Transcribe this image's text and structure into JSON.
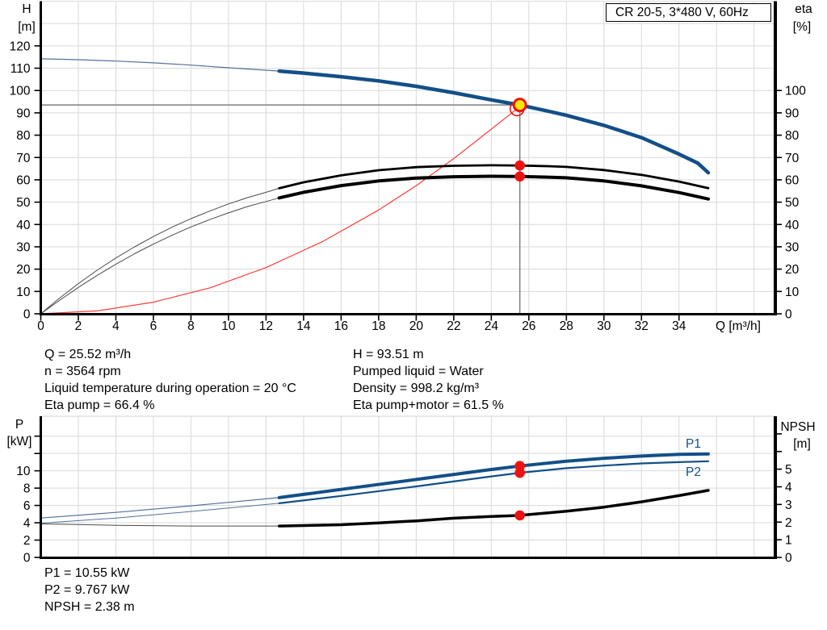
{
  "title_box": "CR 20-5, 3*480 V, 60Hz",
  "series_labels": {
    "p1": "P1",
    "p2": "P2"
  },
  "info_top_left": [
    "Q = 25.52 m³/h",
    "n = 3564 rpm",
    "Liquid temperature during operation = 20 °C",
    "Eta pump = 66.4 %"
  ],
  "info_top_right": [
    "H = 93.51 m",
    "Pumped liquid = Water",
    "Density = 998.2 kg/m³",
    "Eta pump+motor = 61.5 %"
  ],
  "info_bottom": [
    "P1 = 10.55 kW",
    "P2 = 9.767 kW",
    "NPSH = 2.38 m"
  ],
  "colors": {
    "curve_blue": "#134f87",
    "curve_blue_thin": "#53719a",
    "curve_black": "#000000",
    "curve_black_thin": "#4a4a4a",
    "system_red": "#ff3b3b",
    "marker_red": "#ee1111",
    "marker_yellow": "#ffe800",
    "grid": "#d9d9d9",
    "axis": "#000000",
    "crosshair": "#7f7f7f",
    "text": "#000000"
  },
  "chart_data": [
    {
      "type": "line",
      "name": "qh-efficiency-chart",
      "title": "CR 20-5, 3*480 V, 60Hz",
      "x_axis": {
        "label": "Q [m³/h]",
        "min": 0,
        "max": 39.13,
        "tick_step": 2,
        "ticks": [
          0,
          2,
          4,
          6,
          8,
          10,
          12,
          14,
          16,
          18,
          20,
          22,
          24,
          26,
          28,
          30,
          32,
          34
        ],
        "gridlines": [
          2,
          4,
          6,
          8,
          10,
          12,
          14,
          16,
          18,
          20,
          22,
          24,
          26,
          28,
          30,
          32,
          34,
          36,
          38
        ],
        "grid": true
      },
      "y_left": {
        "label_lines": [
          "H",
          "[m]"
        ],
        "min": 0,
        "max": 140,
        "ticks": [
          0,
          10,
          20,
          30,
          40,
          50,
          60,
          70,
          80,
          90,
          100,
          110,
          120
        ],
        "gridlines": [
          10,
          20,
          30,
          40,
          50,
          60,
          70,
          80,
          90,
          100,
          110,
          120,
          130,
          140
        ]
      },
      "y_right": {
        "label_lines": [
          "eta",
          "[%]"
        ],
        "min": 0,
        "max": 140,
        "ticks": [
          0,
          10,
          20,
          30,
          40,
          50,
          60,
          70,
          80,
          90,
          100
        ]
      },
      "series": [
        {
          "name": "system-curve",
          "axis": "left",
          "color": "system_red",
          "width": 1.2,
          "points": [
            [
              0,
              0
            ],
            [
              3,
              1.3
            ],
            [
              6,
              5.2
            ],
            [
              9,
              11.6
            ],
            [
              12,
              20.7
            ],
            [
              15,
              32.3
            ],
            [
              18,
              46.5
            ],
            [
              20,
              57.4
            ],
            [
              22,
              69.5
            ],
            [
              24,
              82.7
            ],
            [
              25.37,
              91.8
            ]
          ]
        },
        {
          "name": "eta-pump-curve-extension",
          "axis": "right",
          "color": "curve_black_thin",
          "width": 1,
          "points": [
            [
              0,
              0
            ],
            [
              1,
              7
            ],
            [
              2,
              13.5
            ],
            [
              3,
              19.5
            ],
            [
              4,
              25
            ],
            [
              5,
              30
            ],
            [
              6,
              34.6
            ],
            [
              7,
              38.8
            ],
            [
              8,
              42.6
            ],
            [
              9,
              46
            ],
            [
              10,
              49.2
            ],
            [
              11,
              52
            ],
            [
              12,
              54.4
            ],
            [
              12.7,
              56.2
            ]
          ]
        },
        {
          "name": "eta-pump-motor-curve-extension",
          "axis": "right",
          "color": "curve_black_thin",
          "width": 1,
          "points": [
            [
              0,
              0
            ],
            [
              1,
              6
            ],
            [
              2,
              11.8
            ],
            [
              3,
              17.2
            ],
            [
              4,
              22.2
            ],
            [
              5,
              26.9
            ],
            [
              6,
              31.2
            ],
            [
              7,
              35.2
            ],
            [
              8,
              38.9
            ],
            [
              9,
              42.2
            ],
            [
              10,
              45.2
            ],
            [
              11,
              48
            ],
            [
              12,
              50.3
            ],
            [
              12.7,
              51.9
            ]
          ]
        },
        {
          "name": "eta-pump-curve",
          "axis": "right",
          "color": "curve_black",
          "width": 2.8,
          "points": [
            [
              12.7,
              56.2
            ],
            [
              14,
              58.9
            ],
            [
              16,
              62
            ],
            [
              18,
              64.3
            ],
            [
              20,
              65.7
            ],
            [
              22,
              66.3
            ],
            [
              24,
              66.5
            ],
            [
              25.52,
              66.4
            ],
            [
              27,
              66.1
            ],
            [
              28,
              65.8
            ],
            [
              30,
              64.4
            ],
            [
              32,
              62.2
            ],
            [
              34,
              59.2
            ],
            [
              35.56,
              56.3
            ]
          ]
        },
        {
          "name": "eta-pump-motor-curve",
          "axis": "right",
          "color": "curve_black",
          "width": 4,
          "points": [
            [
              12.7,
              51.9
            ],
            [
              14,
              54.4
            ],
            [
              16,
              57.4
            ],
            [
              18,
              59.5
            ],
            [
              20,
              60.8
            ],
            [
              22,
              61.4
            ],
            [
              24,
              61.6
            ],
            [
              25.52,
              61.5
            ],
            [
              27,
              61.2
            ],
            [
              28,
              60.9
            ],
            [
              30,
              59.5
            ],
            [
              32,
              57.3
            ],
            [
              34,
              54.3
            ],
            [
              35.56,
              51.4
            ]
          ]
        },
        {
          "name": "qh-curve-extension",
          "axis": "left",
          "color": "curve_blue_thin",
          "width": 1.2,
          "points": [
            [
              0,
              114.2
            ],
            [
              2,
              113.8
            ],
            [
              4,
              113.2
            ],
            [
              6,
              112.4
            ],
            [
              8,
              111.4
            ],
            [
              10,
              110.2
            ],
            [
              12.7,
              108.7
            ]
          ]
        },
        {
          "name": "qh-curve",
          "axis": "left",
          "color": "curve_blue",
          "width": 4.5,
          "points": [
            [
              12.7,
              108.7
            ],
            [
              14,
              107.8
            ],
            [
              16,
              106.2
            ],
            [
              18,
              104.3
            ],
            [
              20,
              101.9
            ],
            [
              22,
              99.0
            ],
            [
              24,
              95.8
            ],
            [
              25.52,
              93.51
            ],
            [
              27,
              90.8
            ],
            [
              28,
              88.9
            ],
            [
              30,
              84.4
            ],
            [
              32,
              78.9
            ],
            [
              34,
              71.5
            ],
            [
              35,
              67.5
            ],
            [
              35.56,
              63.2
            ]
          ]
        }
      ],
      "duty_point": {
        "q": 25.52,
        "h": 93.51,
        "crosshair": true
      },
      "open_marker": {
        "q": 25.37,
        "h": 91.8
      },
      "dot_markers": [
        {
          "q": 25.52,
          "value": 66.4,
          "axis": "right"
        },
        {
          "q": 25.52,
          "value": 61.5,
          "axis": "right"
        }
      ]
    },
    {
      "type": "line",
      "name": "power-npsh-chart",
      "x_axis": {
        "label": "",
        "min": 0,
        "max": 39.13,
        "ticks": [],
        "gridlines": [
          2,
          4,
          6,
          8,
          10,
          12,
          14,
          16,
          18,
          20,
          22,
          24,
          26,
          28,
          30,
          32,
          34,
          36,
          38
        ],
        "grid": true
      },
      "y_left": {
        "label_lines": [
          "P",
          "[kW]"
        ],
        "min": 0,
        "max": 16.3,
        "ticks": [
          0,
          2,
          4,
          6,
          8,
          10
        ],
        "ticks_unlabeled": [
          12,
          14
        ],
        "gridlines": [
          2,
          4,
          6,
          8,
          10,
          12,
          14
        ]
      },
      "y_right": {
        "label_lines": [
          "NPSH",
          "[m]"
        ],
        "min": 0,
        "max": 8,
        "ticks": [
          0,
          1,
          2,
          3,
          4,
          5
        ],
        "ticks_unlabeled": [
          6,
          7
        ]
      },
      "series": [
        {
          "name": "npsh-curve-extension",
          "axis": "right",
          "color": "curve_black_thin",
          "width": 1,
          "points": [
            [
              0,
              1.9
            ],
            [
              4,
              1.82
            ],
            [
              8,
              1.78
            ],
            [
              12.7,
              1.78
            ]
          ]
        },
        {
          "name": "npsh-curve",
          "axis": "right",
          "color": "curve_black",
          "width": 3.5,
          "points": [
            [
              12.7,
              1.78
            ],
            [
              16,
              1.85
            ],
            [
              18,
              1.95
            ],
            [
              20,
              2.07
            ],
            [
              22,
              2.22
            ],
            [
              24,
              2.32
            ],
            [
              25.52,
              2.38
            ],
            [
              28,
              2.62
            ],
            [
              30,
              2.85
            ],
            [
              32,
              3.15
            ],
            [
              34,
              3.5
            ],
            [
              35.56,
              3.8
            ]
          ]
        },
        {
          "name": "p2-curve-extension",
          "axis": "left",
          "color": "curve_blue_thin",
          "width": 1,
          "points": [
            [
              0,
              3.95
            ],
            [
              4,
              4.55
            ],
            [
              8,
              5.3
            ],
            [
              12.7,
              6.25
            ]
          ]
        },
        {
          "name": "p2-curve",
          "axis": "left",
          "color": "curve_blue",
          "width": 2.2,
          "points": [
            [
              12.7,
              6.25
            ],
            [
              16,
              7.1
            ],
            [
              20,
              8.2
            ],
            [
              24,
              9.35
            ],
            [
              25.52,
              9.767
            ],
            [
              28,
              10.3
            ],
            [
              30,
              10.6
            ],
            [
              32,
              10.85
            ],
            [
              34,
              11.0
            ],
            [
              35.56,
              11.1
            ]
          ]
        },
        {
          "name": "p1-curve-extension",
          "axis": "left",
          "color": "curve_blue_thin",
          "width": 1.2,
          "points": [
            [
              0,
              4.55
            ],
            [
              4,
              5.2
            ],
            [
              8,
              5.95
            ],
            [
              12.7,
              6.9
            ]
          ]
        },
        {
          "name": "p1-curve",
          "axis": "left",
          "color": "curve_blue",
          "width": 4,
          "points": [
            [
              12.7,
              6.9
            ],
            [
              16,
              7.85
            ],
            [
              20,
              9.0
            ],
            [
              24,
              10.15
            ],
            [
              25.52,
              10.55
            ],
            [
              28,
              11.1
            ],
            [
              30,
              11.45
            ],
            [
              32,
              11.7
            ],
            [
              34,
              11.9
            ],
            [
              35.56,
              11.95
            ]
          ]
        }
      ],
      "dot_markers": [
        {
          "q": 25.52,
          "value": 10.55,
          "axis": "left"
        },
        {
          "q": 25.52,
          "value": 9.767,
          "axis": "left"
        },
        {
          "q": 25.52,
          "value": 2.38,
          "axis": "right"
        }
      ]
    }
  ]
}
